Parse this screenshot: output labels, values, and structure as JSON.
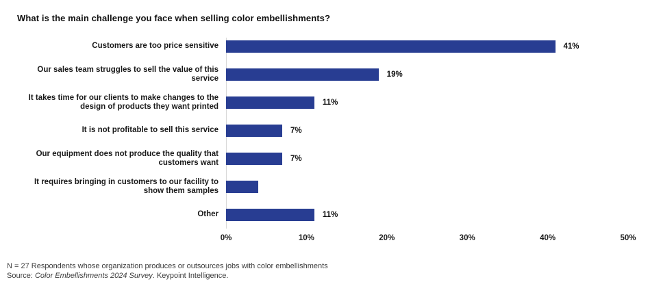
{
  "title": "What is the main challenge you face when selling color embellishments?",
  "chart_data": {
    "type": "bar",
    "orientation": "horizontal",
    "title": "What is the main challenge you face when selling color embellishments?",
    "categories": [
      "Customers are too price sensitive",
      "Our sales team struggles to sell the value of this service",
      "It takes time for our clients to make changes to the design of products they want printed",
      "It is not profitable to sell this service",
      "Our equipment does not produce the quality that customers want",
      "It requires bringing in customers to our facility to show them samples",
      "Other"
    ],
    "values": [
      41,
      19,
      11,
      7,
      7,
      4,
      11
    ],
    "value_labels": [
      "41%",
      "19%",
      "11%",
      "7%",
      "7%",
      "",
      "11%"
    ],
    "xlim": [
      0,
      50
    ],
    "x_ticks": [
      "0%",
      "10%",
      "20%",
      "30%",
      "40%",
      "50%"
    ],
    "grid": "off",
    "legend": "none",
    "bar_color": "#283d92",
    "axis_line_color": "#d9d9d9"
  },
  "footer": {
    "line1": "N = 27 Respondents whose organization produces or outsources jobs with color embellishments",
    "source_prefix": "Source: ",
    "source_italic": "Color Embellishments 2024 Survey",
    "source_suffix": ". Keypoint Intelligence."
  }
}
